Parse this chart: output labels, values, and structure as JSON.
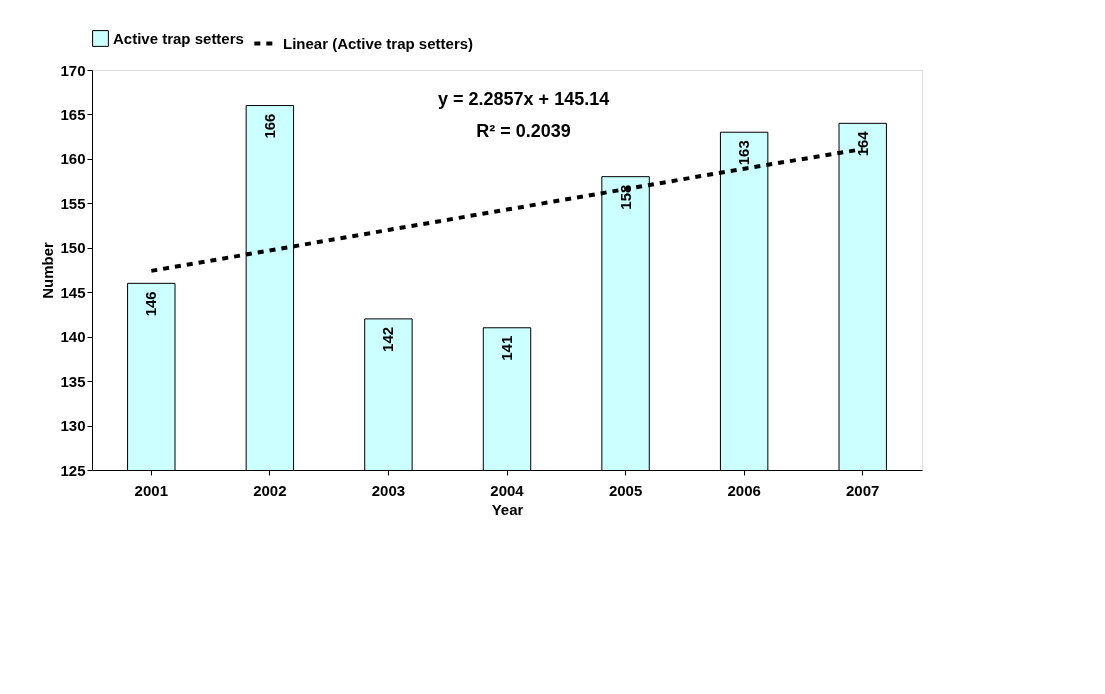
{
  "chart_data": {
    "type": "bar",
    "xlabel": "Year",
    "ylabel": "Number",
    "categories": [
      "2001",
      "2002",
      "2003",
      "2004",
      "2005",
      "2006",
      "2007"
    ],
    "series": [
      {
        "name": "Active trap setters",
        "color": "#ccffff",
        "values": [
          146,
          166,
          142,
          141,
          158,
          163,
          164
        ],
        "value_labels": [
          "146",
          "166",
          "142",
          "141",
          "158",
          "163",
          "164"
        ]
      },
      {
        "name": "Linear (Active trap setters)",
        "type": "line",
        "color": "#000000",
        "line_style": "dashed",
        "values": [
          147.4,
          149.7,
          152.0,
          154.3,
          156.6,
          158.9,
          161.1
        ]
      }
    ],
    "ylim": [
      125,
      170
    ],
    "yticks": [
      125,
      130,
      135,
      140,
      145,
      150,
      155,
      160,
      165,
      170
    ],
    "grid": false,
    "legend": "top",
    "annotations": [
      "y = 2.2857x + 145.14",
      "R² = 0.2039"
    ]
  }
}
